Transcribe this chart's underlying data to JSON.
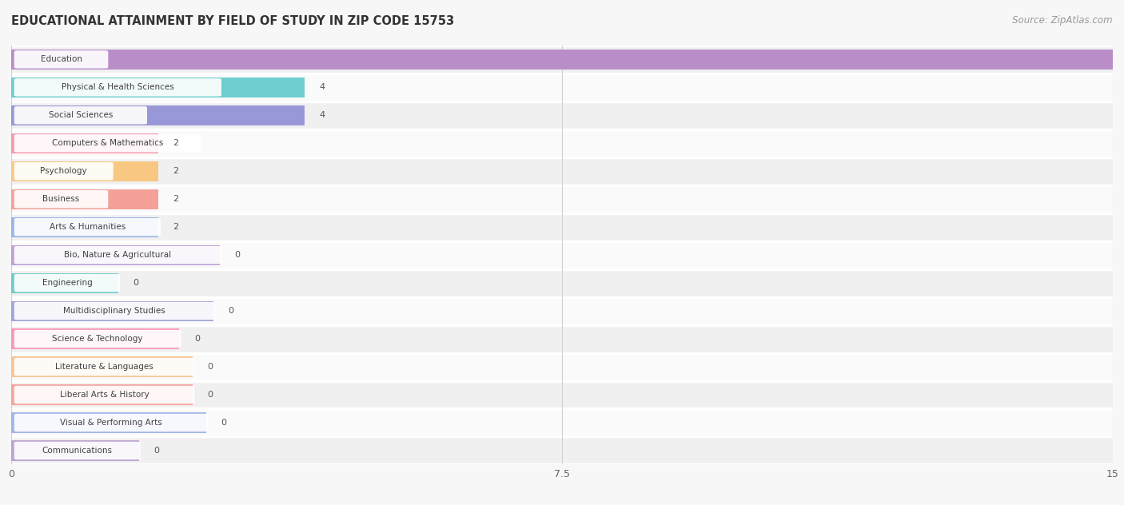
{
  "title": "EDUCATIONAL ATTAINMENT BY FIELD OF STUDY IN ZIP CODE 15753",
  "source": "Source: ZipAtlas.com",
  "categories": [
    "Education",
    "Physical & Health Sciences",
    "Social Sciences",
    "Computers & Mathematics",
    "Psychology",
    "Business",
    "Arts & Humanities",
    "Bio, Nature & Agricultural",
    "Engineering",
    "Multidisciplinary Studies",
    "Science & Technology",
    "Literature & Languages",
    "Liberal Arts & History",
    "Visual & Performing Arts",
    "Communications"
  ],
  "values": [
    15,
    4,
    4,
    2,
    2,
    2,
    2,
    0,
    0,
    0,
    0,
    0,
    0,
    0,
    0
  ],
  "bar_colors": [
    "#b98ec8",
    "#6ecece",
    "#9898d8",
    "#f598ac",
    "#f8c882",
    "#f5a098",
    "#98b4e8",
    "#c0a0d4",
    "#70cac8",
    "#a0a4d8",
    "#f898b4",
    "#f8c490",
    "#f5a49c",
    "#a0b4e8",
    "#bca4d0"
  ],
  "xlim": [
    0,
    15
  ],
  "xticks": [
    0,
    7.5,
    15
  ],
  "bg_color": "#f7f7f7",
  "row_bg_even": "#f0f0f0",
  "row_bg_odd": "#fafafa",
  "grid_color": "#d0d0d0",
  "white_sep": "#ffffff",
  "title_fontsize": 10.5,
  "source_fontsize": 8.5,
  "label_fontsize": 7.5,
  "value_fontsize": 8.0
}
